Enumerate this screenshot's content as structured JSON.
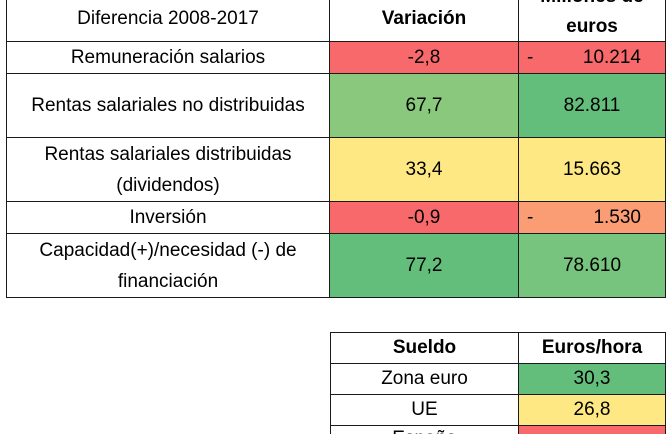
{
  "colors": {
    "red": "#f8696b",
    "orange": "#fa9d75",
    "yellow": "#fee883",
    "light_green": "#8ac97d",
    "green": "#63be7b",
    "green_mid": "#6cc17c",
    "green_alt": "#76c47d"
  },
  "table1": {
    "header": {
      "col1": "Diferencia 2008-2017",
      "col2": "Variación",
      "col3_line1": "Millones de",
      "col3_line2": "euros"
    },
    "rows": [
      {
        "label_1": "Remuneración salarios",
        "label_2": "",
        "variation": "-2,8",
        "sign": "-",
        "millions": "10.214"
      },
      {
        "label_1": "Rentas salariales no distribuidas",
        "label_2": "",
        "variation": "67,7",
        "sign": "",
        "millions": "82.811"
      },
      {
        "label_1": "Rentas salariales distribuidas",
        "label_2": "(dividendos)",
        "variation": "33,4",
        "sign": "",
        "millions": "15.663"
      },
      {
        "label_1": "Inversión",
        "label_2": "",
        "variation": "-0,9",
        "sign": "-",
        "millions": "1.530"
      },
      {
        "label_1": "Capacidad(+)/necesidad (-) de",
        "label_2": "financiación",
        "variation": "77,2",
        "sign": "",
        "millions": "78.610"
      }
    ]
  },
  "table2": {
    "header": {
      "col1": "Sueldo",
      "col2": "Euros/hora"
    },
    "rows": [
      {
        "label": "Zona euro",
        "value": "30,3"
      },
      {
        "label": "UE",
        "value": "26,8"
      },
      {
        "label": "España",
        "value": ""
      }
    ]
  }
}
